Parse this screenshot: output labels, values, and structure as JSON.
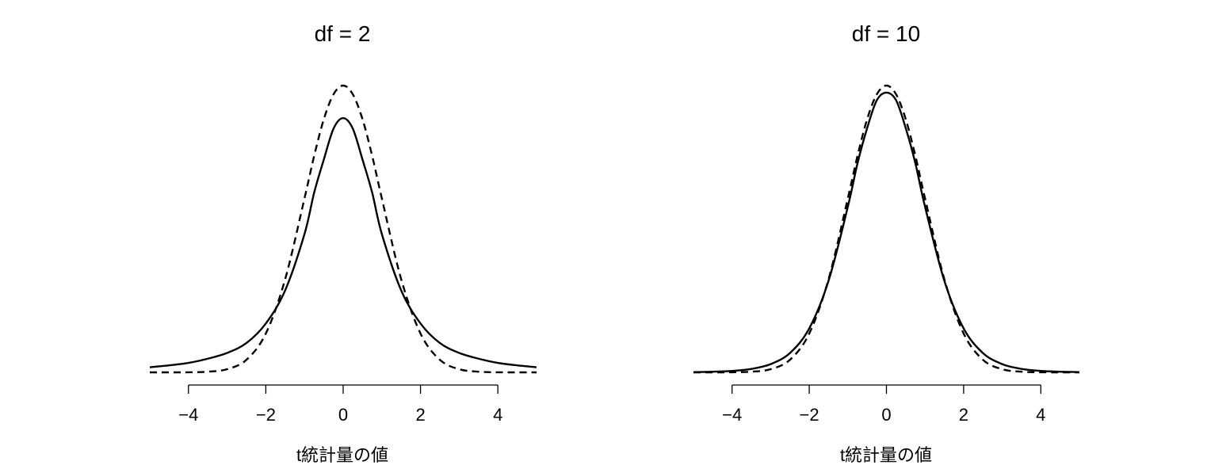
{
  "chart_data": [
    {
      "type": "line",
      "title": "df = 2",
      "xlabel": "t統計量の値",
      "ylabel": "",
      "xlim": [
        -5,
        5
      ],
      "ylim": [
        0,
        0.4
      ],
      "x_ticks": [
        -4,
        -2,
        0,
        2,
        4
      ],
      "x_tick_labels": [
        "−4",
        "−2",
        "0",
        "2",
        "4"
      ],
      "y_axis_shown": false,
      "grid": false,
      "df": 2,
      "series": [
        {
          "line_style": "solid",
          "x": [
            -5,
            -4.5,
            -4,
            -3.5,
            -3,
            -2.5,
            -2,
            -1.5,
            -1,
            -0.75,
            -0.5,
            -0.25,
            0,
            0.25,
            0.5,
            0.75,
            1,
            1.5,
            2,
            2.5,
            3,
            3.5,
            4,
            4.5,
            5
          ],
          "y": [
            0.0071,
            0.0097,
            0.0131,
            0.019,
            0.027,
            0.0408,
            0.068,
            0.114,
            0.1924,
            0.25,
            0.296,
            0.3389,
            0.3536,
            0.3389,
            0.296,
            0.25,
            0.1924,
            0.114,
            0.068,
            0.0408,
            0.027,
            0.019,
            0.0131,
            0.0097,
            0.0071
          ]
        },
        {
          "line_style": "dashed",
          "x": [
            -5,
            -4.5,
            -4,
            -3.5,
            -3,
            -2.5,
            -2,
            -1.5,
            -1,
            -0.75,
            -0.5,
            -0.25,
            0,
            0.25,
            0.5,
            0.75,
            1,
            1.5,
            2,
            2.5,
            3,
            3.5,
            4,
            4.5,
            5
          ],
          "y": [
            0.0,
            0.0,
            0.0001,
            0.0009,
            0.0044,
            0.0175,
            0.054,
            0.1295,
            0.242,
            0.3011,
            0.3521,
            0.3867,
            0.3989,
            0.3867,
            0.3521,
            0.3011,
            0.242,
            0.1295,
            0.054,
            0.0175,
            0.0044,
            0.0009,
            0.0001,
            0.0,
            0.0
          ]
        }
      ]
    },
    {
      "type": "line",
      "title": "df = 10",
      "xlabel": "t統計量の値",
      "ylabel": "",
      "xlim": [
        -5,
        5
      ],
      "ylim": [
        0,
        0.4
      ],
      "x_ticks": [
        -4,
        -2,
        0,
        2,
        4
      ],
      "x_tick_labels": [
        "−4",
        "−2",
        "0",
        "2",
        "4"
      ],
      "y_axis_shown": false,
      "grid": false,
      "df": 10,
      "series": [
        {
          "line_style": "solid",
          "x": [
            -5,
            -4.5,
            -4,
            -3.5,
            -3,
            -2.5,
            -2,
            -1.5,
            -1,
            -0.75,
            -0.5,
            -0.25,
            0,
            0.25,
            0.5,
            0.75,
            1,
            1.5,
            2,
            2.5,
            3,
            3.5,
            4,
            4.5,
            5
          ],
          "y": [
            0.0004,
            0.0009,
            0.002,
            0.0048,
            0.0114,
            0.0269,
            0.0611,
            0.1274,
            0.2304,
            0.2907,
            0.3397,
            0.3784,
            0.3891,
            0.3784,
            0.3397,
            0.2907,
            0.2304,
            0.1274,
            0.0611,
            0.0269,
            0.0114,
            0.0048,
            0.002,
            0.0009,
            0.0004
          ]
        },
        {
          "line_style": "dashed",
          "x": [
            -5,
            -4.5,
            -4,
            -3.5,
            -3,
            -2.5,
            -2,
            -1.5,
            -1,
            -0.75,
            -0.5,
            -0.25,
            0,
            0.25,
            0.5,
            0.75,
            1,
            1.5,
            2,
            2.5,
            3,
            3.5,
            4,
            4.5,
            5
          ],
          "y": [
            0.0,
            0.0,
            0.0001,
            0.0009,
            0.0044,
            0.0175,
            0.054,
            0.1295,
            0.242,
            0.3011,
            0.3521,
            0.3867,
            0.3989,
            0.3867,
            0.3521,
            0.3011,
            0.242,
            0.1295,
            0.054,
            0.0175,
            0.0044,
            0.0009,
            0.0001,
            0.0,
            0.0
          ]
        }
      ]
    }
  ]
}
